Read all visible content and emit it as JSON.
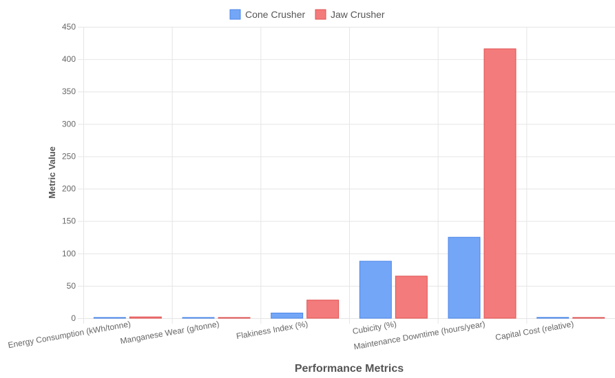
{
  "colors": {
    "cone_fill": "#74a6f7",
    "cone_border": "#4a86e8",
    "jaw_fill": "#f47b7b",
    "jaw_border": "#e05252",
    "grid": "#e5e5e5",
    "text": "#666666"
  },
  "chart_data": {
    "type": "bar",
    "title": "",
    "xlabel": "Performance Metrics",
    "ylabel": "Metric Value",
    "ylim": [
      0,
      450
    ],
    "yticks": [
      0,
      50,
      100,
      150,
      200,
      250,
      300,
      350,
      400,
      450
    ],
    "grid": true,
    "legend_position": "top",
    "categories": [
      "Energy Consumption (kWh/tonne)",
      "Manganese Wear (g/tonne)",
      "Flakiness Index (%)",
      "Cubicity (%)",
      "Maintenance Downtime (hours/year)",
      "Capital Cost (relative)"
    ],
    "series": [
      {
        "name": "Cone Crusher",
        "values": [
          1.1,
          0.8,
          8,
          88,
          125,
          1.2
        ]
      },
      {
        "name": "Jaw Crusher",
        "values": [
          2,
          0.4,
          28,
          65,
          416,
          1
        ]
      }
    ]
  }
}
